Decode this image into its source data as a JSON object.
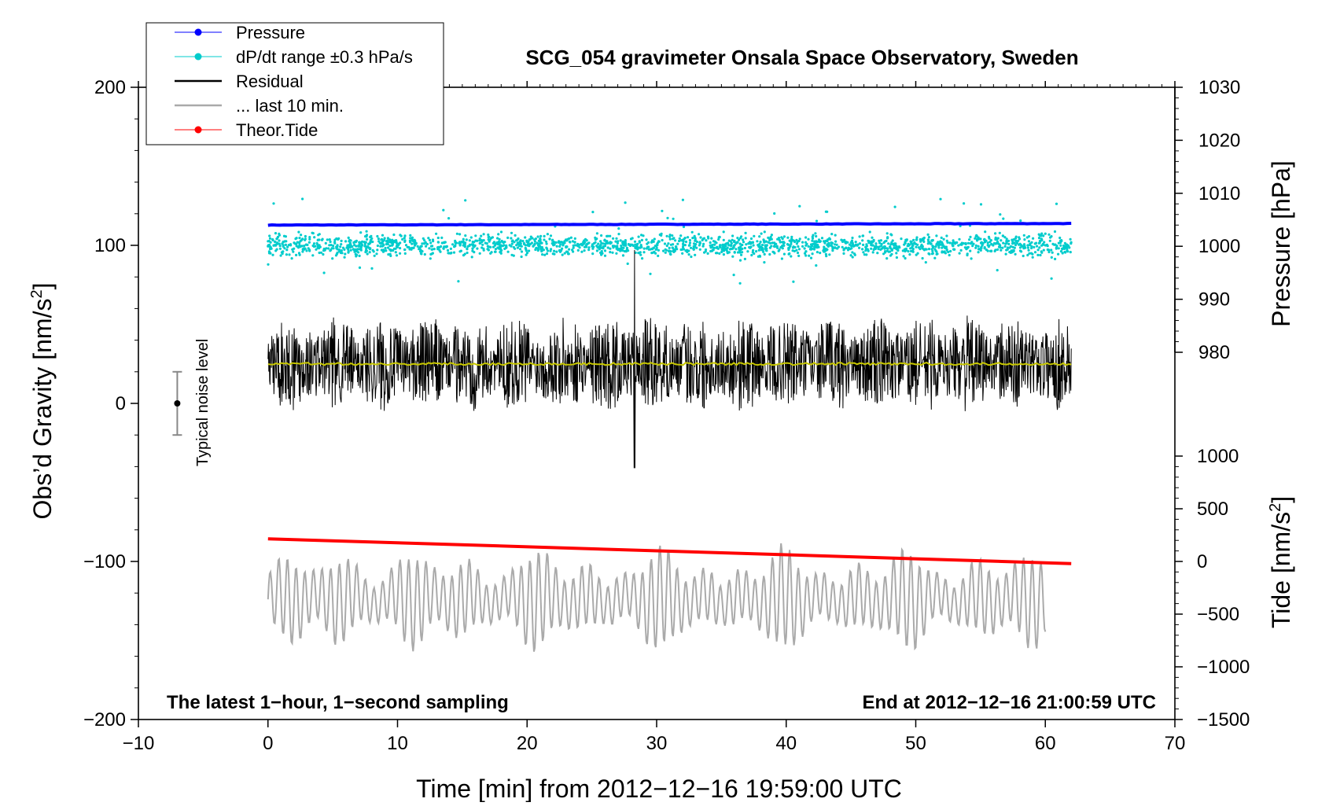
{
  "chart_data": {
    "type": "line",
    "title": "SCG_054 gravimeter Onsala Space Observatory, Sweden",
    "xlabel": "Time [min] from 2012−12−16 19:59:00 UTC",
    "ylabel_left": "Obs’d Gravity [nm/s²]",
    "ylabel_left_prefix": "Obs’d Gravity [nm/s",
    "ylabel_left_suffix": "]",
    "ylabel_right_top": "Pressure [hPa]",
    "ylabel_right_bottom_prefix": "Tide [nm/s",
    "ylabel_right_bottom_suffix": "]",
    "superscript": "2",
    "xlim": [
      -10,
      70
    ],
    "ylim": [
      -200,
      200
    ],
    "xticks": [
      -10,
      0,
      10,
      20,
      30,
      40,
      50,
      60,
      70
    ],
    "xtick_labels": [
      "−10",
      "0",
      "10",
      "20",
      "30",
      "40",
      "50",
      "60",
      "70"
    ],
    "yticks_left": [
      200,
      100,
      0,
      -100,
      -200
    ],
    "ytick_labels_left": [
      "200",
      "100",
      "0",
      "−100",
      "−200"
    ],
    "pressure_axis": {
      "range": [
        980,
        1030
      ],
      "ticks": [
        1030,
        1020,
        1010,
        1000,
        990,
        980
      ],
      "tick_labels": [
        "1030",
        "1020",
        "1010",
        "1000",
        "990",
        "980"
      ]
    },
    "tide_axis": {
      "range": [
        -1500,
        1000
      ],
      "ticks": [
        1000,
        500,
        0,
        -500,
        -1000,
        -1500
      ],
      "tick_labels": [
        "1000",
        "500",
        "0",
        "−500",
        "−1000",
        "−1500"
      ]
    },
    "legend": {
      "position": "top-left",
      "entries": [
        {
          "label": "Pressure",
          "color": "#0000ff",
          "marker": "dot"
        },
        {
          "label": "dP/dt range ±0.3 hPa/s",
          "color": "#00cccc",
          "marker": "dot"
        },
        {
          "label": "Residual",
          "color": "#000000",
          "marker": "line"
        },
        {
          "label": "... last 10 min.",
          "color": "#aaaaaa",
          "marker": "line"
        },
        {
          "label": "Theor.Tide",
          "color": "#ff0000",
          "marker": "dot"
        }
      ]
    },
    "annotations": {
      "bottom_left": "The latest 1−hour, 1−second sampling",
      "bottom_right": "End at 2012−12−16 21:00:59 UTC",
      "noise_label": "Typical noise level"
    },
    "noise_bar": {
      "x": -7,
      "center": 0,
      "half_range": 20
    },
    "series": [
      {
        "name": "Pressure",
        "color": "#0000ff",
        "unit": "hPa",
        "x_range": [
          0,
          62
        ],
        "start": 1004.0,
        "end": 1004.3
      },
      {
        "name": "dP/dt range",
        "color": "#00cccc",
        "unit": "gravity-axis",
        "x_range": [
          0,
          62
        ],
        "center": 100,
        "spread": 4,
        "outlier_max": 127,
        "outlier_min": 76
      },
      {
        "name": "Residual",
        "color": "#000000",
        "unit": "nm/s²",
        "x_range": [
          0,
          62
        ],
        "center": 25,
        "typical_amplitude": 22,
        "peak_max": 97,
        "peak_min": -41,
        "peak_at": 28.3
      },
      {
        "name": "Residual mean",
        "color": "#c8c800",
        "unit": "nm/s²",
        "x_range": [
          0,
          62
        ],
        "value": 25
      },
      {
        "name": "... last 10 min.",
        "color": "#aaaaaa",
        "unit": "gravity-axis",
        "x_range": [
          0,
          60
        ],
        "center": -124,
        "max": -70,
        "min": -172
      },
      {
        "name": "Theor.Tide",
        "color": "#ff0000",
        "unit": "nm/s²",
        "x_range": [
          0,
          62
        ],
        "start": 215,
        "end": -20
      }
    ]
  }
}
